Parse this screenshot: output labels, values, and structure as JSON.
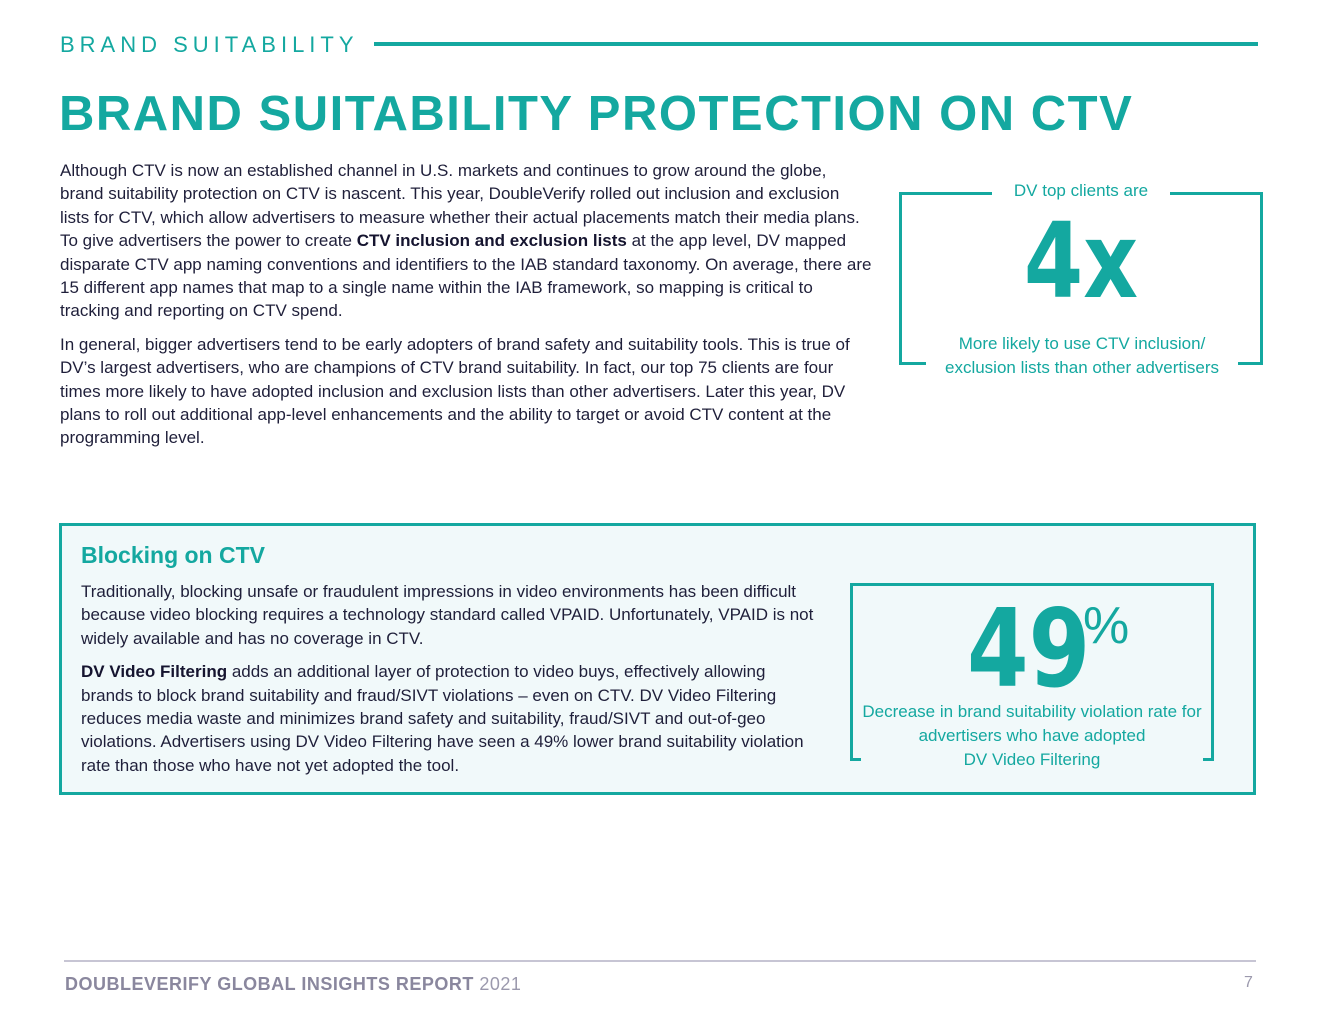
{
  "header": {
    "section_label": "BRAND SUITABILITY",
    "title": "BRAND SUITABILITY PROTECTION ON CTV"
  },
  "intro": {
    "p1_before": "Although CTV is now an established channel in U.S. markets and continues to grow around the globe, brand suitability protection on CTV is nascent. This year, DoubleVerify rolled out inclusion and exclusion lists for CTV, which allow advertisers to measure whether their actual placements match their media plans. To give advertisers the power to create ",
    "p1_bold": "CTV inclusion and exclusion lists",
    "p1_after": " at the app level, DV mapped disparate CTV app naming conventions and identifiers to the IAB standard taxonomy. On average, there are 15 different app names that map to a single name within the IAB framework, so mapping is critical to tracking and reporting on CTV spend.",
    "p2": "In general, bigger advertisers tend to be early adopters of brand safety and suitability tools. This is true of DV’s largest advertisers, who are champions of CTV brand suitability. In fact, our top 75 clients are four times more likely to have adopted inclusion and exclusion lists than other advertisers. Later this year, DV plans to roll out additional app-level enhancements and the ability to target or avoid CTV content at the programming level."
  },
  "stat_adoption": {
    "top_label": "DV top clients are",
    "value": "4x",
    "description": "More likely to use CTV inclusion/ exclusion lists than other advertisers"
  },
  "blocking": {
    "title": "Blocking on CTV",
    "p1": "Traditionally, blocking unsafe or fraudulent impressions in video environments has been difficult because video blocking requires a technology standard called VPAID. Unfortunately, VPAID is not widely available and has no coverage in CTV.",
    "p2_bold": "DV Video Filtering",
    "p2_after": " adds an additional layer of protection to video buys, effectively allowing brands to block brand suitability and fraud/SIVT violations – even on CTV. DV Video Filtering reduces media waste and minimizes brand safety and suitability, fraud/SIVT and out-of-geo violations. Advertisers using DV Video Filtering have seen a 49% lower brand suitability violation rate than those who have not yet adopted the tool."
  },
  "stat_decrease": {
    "value": "49",
    "unit": "%",
    "description": "Decrease in brand suitability violation rate for advertisers who have adopted",
    "description_last": "DV Video Filtering"
  },
  "footer": {
    "brand": "DOUBLEVERIFY GLOBAL INSIGHTS REPORT",
    "year": "2021",
    "page_number": "7"
  },
  "colors": {
    "accent": "#14a8a0",
    "text": "#1f1f3a",
    "footer": "#8a879e",
    "panel_bg": "#f1f9fa"
  }
}
